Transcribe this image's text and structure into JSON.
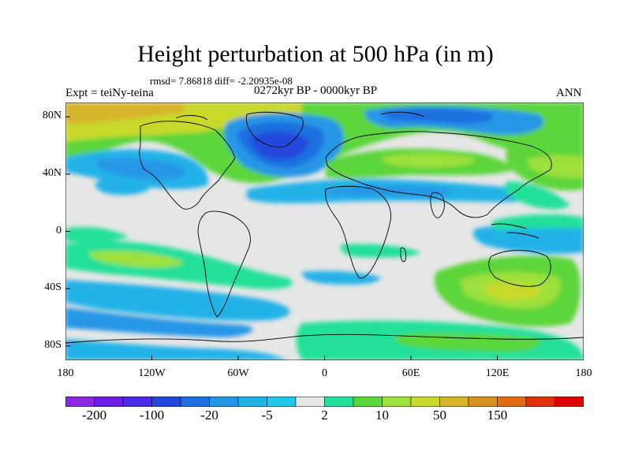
{
  "title": "Height perturbation at 500 hPa (in m)",
  "stats": "rmsd= 7.86818 diff= -2.20935e-08",
  "period": "0272kyr BP - 0000kyr BP",
  "experiment": "Expt = teiNy-teina",
  "season": "ANN",
  "lat_ticks": [
    {
      "label": "80N",
      "lat": 80
    },
    {
      "label": "40N",
      "lat": 40
    },
    {
      "label": "0",
      "lat": 0
    },
    {
      "label": "40S",
      "lat": -40
    },
    {
      "label": "80S",
      "lat": -80
    }
  ],
  "lon_ticks": [
    {
      "label": "180",
      "lon": -180
    },
    {
      "label": "120W",
      "lon": -120
    },
    {
      "label": "60W",
      "lon": -60
    },
    {
      "label": "0",
      "lon": 0
    },
    {
      "label": "60E",
      "lon": 60
    },
    {
      "label": "120E",
      "lon": 120
    },
    {
      "label": "180",
      "lon": 180
    }
  ],
  "colorbar": {
    "colors": [
      "#8a2be2",
      "#6a1ee6",
      "#4a2ae8",
      "#2148dc",
      "#1e6fe0",
      "#2596e6",
      "#23b2e8",
      "#1fc8ea",
      "#e6e6e6",
      "#23e09a",
      "#5bd63a",
      "#9ee03a",
      "#c8d92a",
      "#d8b42a",
      "#d8901e",
      "#e06a16",
      "#e0300c",
      "#e00000"
    ],
    "labels": [
      {
        "text": "-200",
        "boundary": 1
      },
      {
        "text": "-100",
        "boundary": 3
      },
      {
        "text": "-20",
        "boundary": 5
      },
      {
        "text": "-5",
        "boundary": 7
      },
      {
        "text": "2",
        "boundary": 9
      },
      {
        "text": "10",
        "boundary": 11
      },
      {
        "text": "50",
        "boundary": 13
      },
      {
        "text": "150",
        "boundary": 15
      }
    ]
  }
}
